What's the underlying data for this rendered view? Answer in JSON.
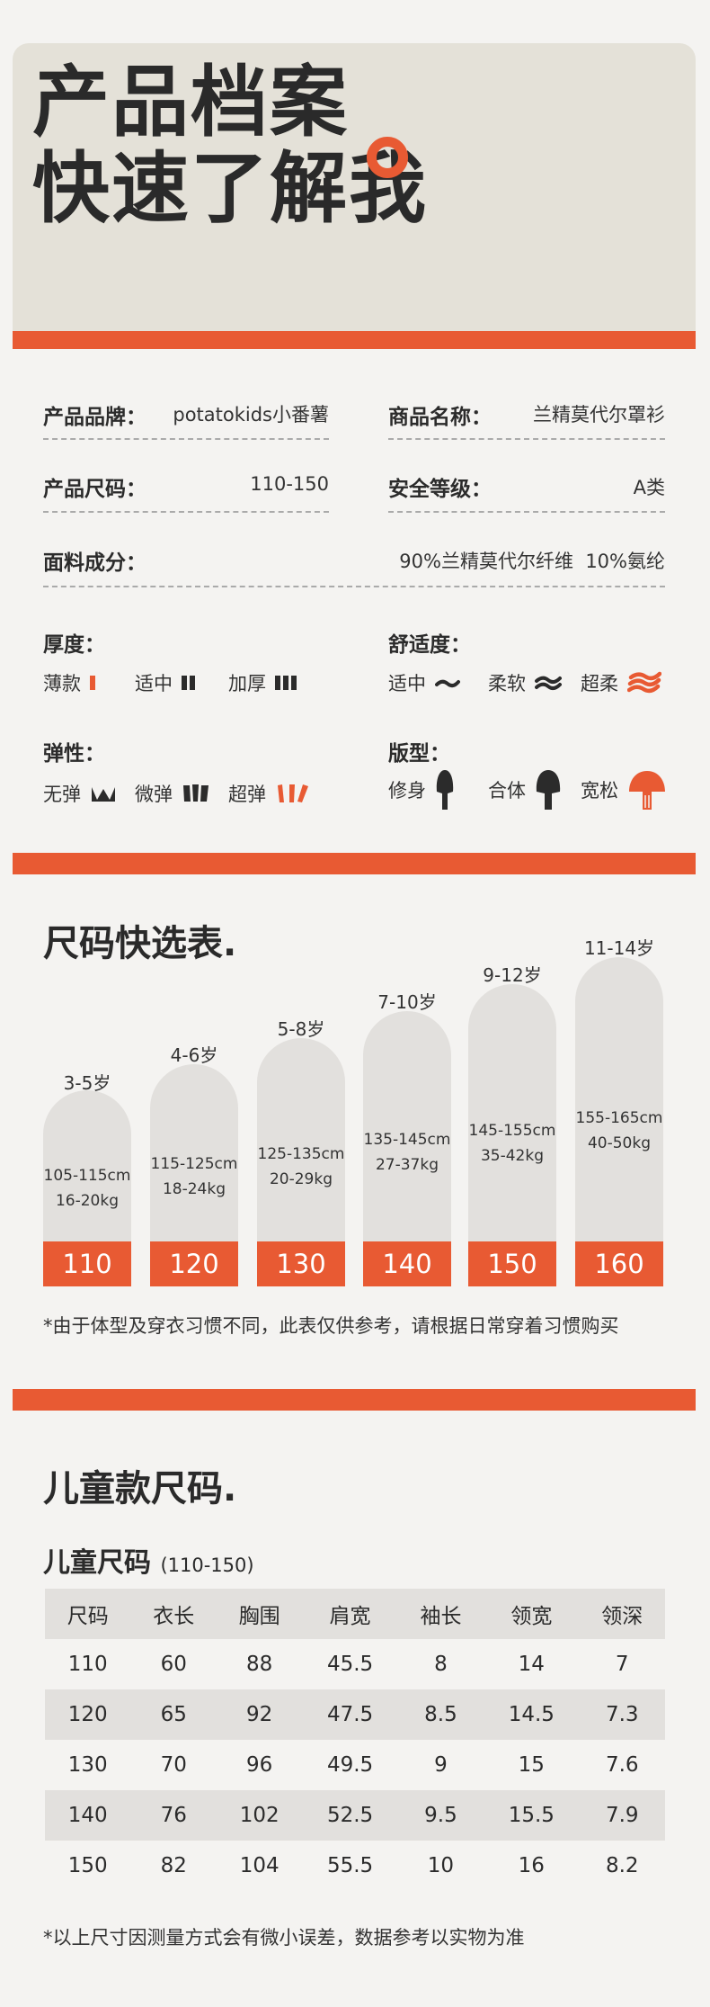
{
  "hero": {
    "title_line1": "产品档案",
    "title_line2": "快速了解我"
  },
  "info": {
    "brand_label": "产品品牌：",
    "brand_value": "potatokids小番薯",
    "name_label": "商品名称：",
    "name_value": "兰精莫代尔罩衫",
    "size_label": "产品尺码：",
    "size_value": "110-150",
    "safety_label": "安全等级：",
    "safety_value": "A类",
    "fabric_label": "面料成分：",
    "fabric_value": "90%兰精莫代尔纤维  10%氨纶"
  },
  "attributes": {
    "thickness": {
      "title": "厚度：",
      "options": [
        "薄款",
        "适中",
        "加厚"
      ]
    },
    "comfort": {
      "title": "舒适度：",
      "options": [
        "适中",
        "柔软",
        "超柔"
      ]
    },
    "elasticity": {
      "title": "弹性：",
      "options": [
        "无弹",
        "微弹",
        "超弹"
      ]
    },
    "fit": {
      "title": "版型：",
      "options": [
        "修身",
        "合体",
        "宽松"
      ]
    },
    "selected": {
      "thickness": "薄款",
      "comfort": "超柔",
      "elasticity": "超弹",
      "fit": "宽松"
    }
  },
  "size_chart": {
    "title": "尺码快选表.",
    "columns": [
      {
        "age": "3-5岁",
        "height": "105-115cm",
        "weight": "16-20kg",
        "size": "110"
      },
      {
        "age": "4-6岁",
        "height": "115-125cm",
        "weight": "18-24kg",
        "size": "120"
      },
      {
        "age": "5-8岁",
        "height": "125-135cm",
        "weight": "20-29kg",
        "size": "130"
      },
      {
        "age": "7-10岁",
        "height": "135-145cm",
        "weight": "27-37kg",
        "size": "140"
      },
      {
        "age": "9-12岁",
        "height": "145-155cm",
        "weight": "35-42kg",
        "size": "150"
      },
      {
        "age": "11-14岁",
        "height": "155-165cm",
        "weight": "40-50kg",
        "size": "160"
      }
    ],
    "note": "*由于体型及穿衣习惯不同，此表仅供参考，请根据日常穿着习惯购买"
  },
  "kids_table": {
    "section_title": "儿童款尺码.",
    "title": "儿童尺码",
    "range": "(110-150)",
    "headers": [
      "尺码",
      "衣长",
      "胸围",
      "肩宽",
      "袖长",
      "领宽",
      "领深"
    ],
    "rows": [
      [
        "110",
        "60",
        "88",
        "45.5",
        "8",
        "14",
        "7"
      ],
      [
        "120",
        "65",
        "92",
        "47.5",
        "8.5",
        "14.5",
        "7.3"
      ],
      [
        "130",
        "70",
        "96",
        "49.5",
        "9",
        "15",
        "7.6"
      ],
      [
        "140",
        "76",
        "102",
        "52.5",
        "9.5",
        "15.5",
        "7.9"
      ],
      [
        "150",
        "82",
        "104",
        "55.5",
        "10",
        "16",
        "8.2"
      ]
    ],
    "note": "*以上尺寸因测量方式会有微小误差，数据参考以实物为准"
  },
  "colors": {
    "accent": "#e85a33",
    "hero_bg": "#e4e1d8",
    "page_bg": "#f4f3f1",
    "column_bg": "#e2e0dd"
  }
}
